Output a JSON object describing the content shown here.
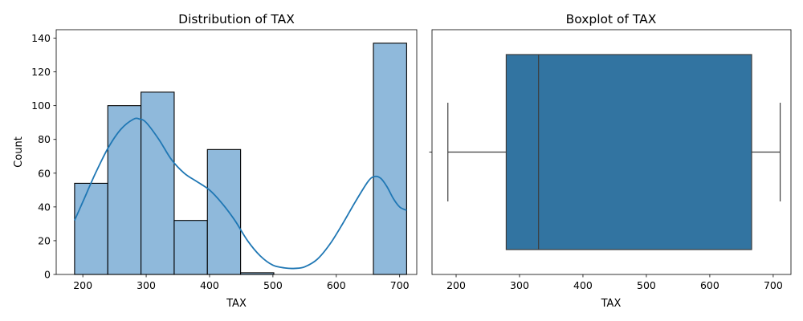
{
  "colors": {
    "hist_fill": "#8fb9db",
    "kde_line": "#1f77b4",
    "box_fill": "#3274a1",
    "whisker": "#3d3d3d"
  },
  "chart_data": [
    {
      "type": "histogram",
      "title": "Distribution of TAX",
      "xlabel": "TAX",
      "ylabel": "Count",
      "xlim": [
        158,
        727
      ],
      "ylim": [
        0,
        145
      ],
      "xticks": [
        200,
        300,
        400,
        500,
        600,
        700
      ],
      "yticks": [
        0,
        20,
        40,
        60,
        80,
        100,
        120,
        140
      ],
      "bins": [
        {
          "x0": 187,
          "x1": 239.4,
          "count": 54
        },
        {
          "x0": 239.4,
          "x1": 291.8,
          "count": 100
        },
        {
          "x0": 291.8,
          "x1": 344.2,
          "count": 108
        },
        {
          "x0": 344.2,
          "x1": 396.6,
          "count": 32
        },
        {
          "x0": 396.6,
          "x1": 449.0,
          "count": 74
        },
        {
          "x0": 449.0,
          "x1": 501.4,
          "count": 1
        },
        {
          "x0": 501.4,
          "x1": 553.8,
          "count": 0
        },
        {
          "x0": 553.8,
          "x1": 606.2,
          "count": 0
        },
        {
          "x0": 606.2,
          "x1": 658.6,
          "count": 0
        },
        {
          "x0": 658.6,
          "x1": 711.0,
          "count": 137
        }
      ],
      "kde": {
        "x": [
          187,
          200,
          220,
          240,
          260,
          280,
          290,
          300,
          320,
          340,
          360,
          380,
          400,
          420,
          440,
          460,
          480,
          500,
          520,
          535,
          550,
          570,
          590,
          610,
          630,
          650,
          660,
          670,
          680,
          690,
          700,
          711
        ],
        "y": [
          32,
          43,
          60,
          75,
          86,
          92,
          92,
          90,
          80,
          68,
          60,
          55,
          50,
          42,
          32,
          20,
          11,
          5.5,
          3.8,
          3.6,
          4.5,
          9,
          18,
          30,
          43,
          55,
          58,
          57,
          52,
          45,
          40,
          38
        ]
      }
    },
    {
      "type": "box",
      "title": "Boxplot of TAX",
      "xlabel": "TAX",
      "xlim": [
        162,
        728
      ],
      "xticks": [
        200,
        300,
        400,
        500,
        600,
        700
      ],
      "whisker_low": 187,
      "q1": 279,
      "median": 330,
      "q3": 666,
      "whisker_high": 711
    }
  ]
}
